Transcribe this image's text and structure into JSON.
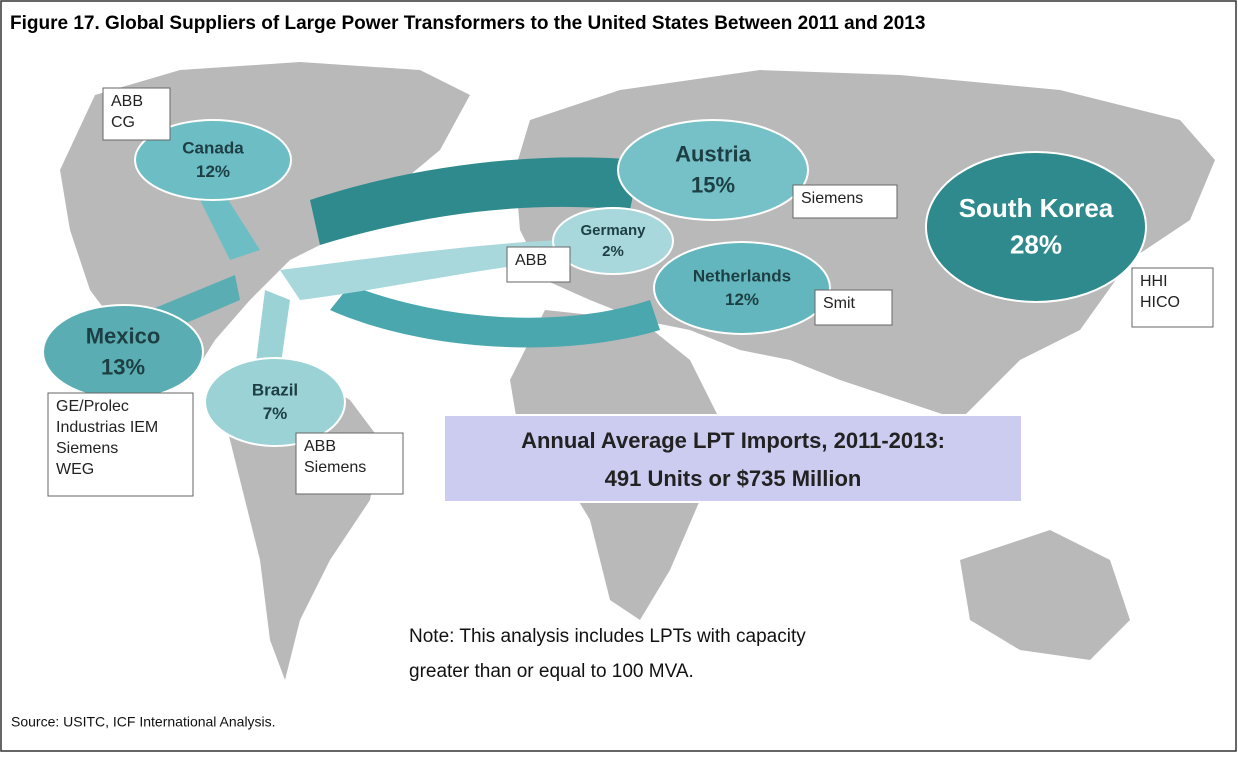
{
  "title": "Figure 17. Global Suppliers of Large Power Transformers to the United States Between 2011 and 2013",
  "countries": [
    {
      "name": "Canada",
      "share": "12%",
      "suppliers": [
        "ABB",
        "CG"
      ]
    },
    {
      "name": "Austria",
      "share": "15%",
      "suppliers": [
        "Siemens"
      ]
    },
    {
      "name": "South Korea",
      "share": "28%",
      "suppliers": [
        "HHI",
        "HICO"
      ]
    },
    {
      "name": "Germany",
      "share": "2%",
      "suppliers": [
        "ABB"
      ]
    },
    {
      "name": "Netherlands",
      "share": "12%",
      "suppliers": [
        "Smit"
      ]
    },
    {
      "name": "Mexico",
      "share": "13%",
      "suppliers": [
        "GE/Prolec",
        "Industrias IEM",
        "Siemens",
        "WEG"
      ]
    },
    {
      "name": "Brazil",
      "share": "7%",
      "suppliers": [
        "ABB",
        "Siemens"
      ]
    }
  ],
  "summary": {
    "line1": "Annual Average LPT Imports, 2011-2013:",
    "line2": "491 Units  or $735 Million"
  },
  "note": [
    "Note: This analysis includes LPTs with capacity",
    "greater than or equal to 100 MVA."
  ],
  "source": "Source: USITC, ICF International Analysis."
}
